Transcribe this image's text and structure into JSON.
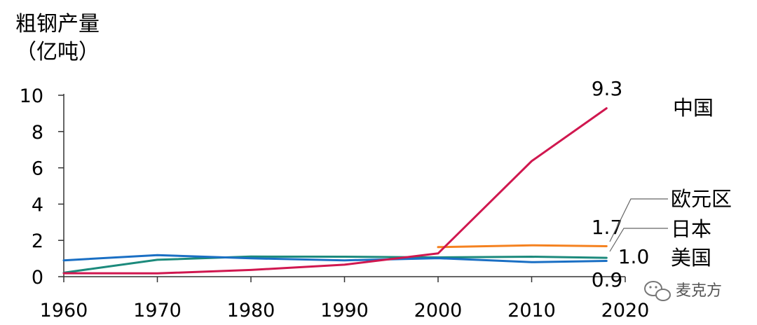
{
  "chart_data": {
    "type": "line",
    "title": "",
    "ylabel_line1": "粗钢产量",
    "ylabel_line2": "（亿吨）",
    "xlabel": "",
    "xlim": [
      1960,
      2020
    ],
    "ylim": [
      0,
      10
    ],
    "x_ticks": [
      "1960",
      "1970",
      "1980",
      "1990",
      "2000",
      "2010",
      "2020"
    ],
    "y_ticks": [
      "0",
      "2",
      "4",
      "6",
      "8",
      "10"
    ],
    "grid": false,
    "legend": "direct labels at right",
    "series": [
      {
        "name": "中国",
        "color": "#d0174f",
        "x": [
          1960,
          1970,
          1980,
          1990,
          2000,
          2010,
          2018
        ],
        "y": [
          0.19,
          0.18,
          0.37,
          0.66,
          1.28,
          6.37,
          9.28
        ],
        "end_label": "9.3"
      },
      {
        "name": "欧元区",
        "color": "#f58220",
        "x": [
          2000,
          2010,
          2018
        ],
        "y": [
          1.63,
          1.73,
          1.68
        ],
        "end_label": "1.7"
      },
      {
        "name": "日本",
        "color": "#1c8a7c",
        "x": [
          1960,
          1970,
          1980,
          1990,
          2000,
          2010,
          2018
        ],
        "y": [
          0.22,
          0.93,
          1.11,
          1.1,
          1.06,
          1.1,
          1.04
        ],
        "end_label": "1.0"
      },
      {
        "name": "美国",
        "color": "#1a6fc4",
        "x": [
          1960,
          1970,
          1980,
          1990,
          2000,
          2010,
          2018
        ],
        "y": [
          0.9,
          1.19,
          1.01,
          0.9,
          1.02,
          0.8,
          0.87
        ],
        "end_label": "0.9"
      }
    ]
  },
  "watermark": {
    "text": "麦克方",
    "icon": "wechat-icon"
  }
}
